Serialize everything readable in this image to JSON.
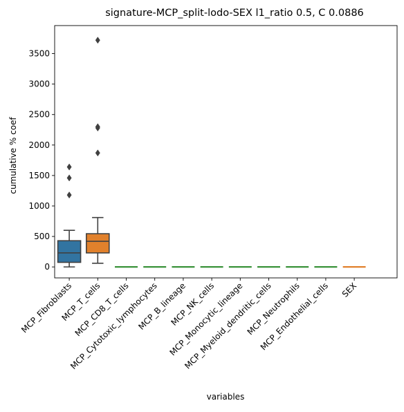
{
  "chart_data": {
    "type": "box",
    "title": "signature-MCP_split-lodo-SEX l1_ratio 0.5, C 0.0886",
    "xlabel": "variables",
    "ylabel": "cumulative % coef",
    "ylim": [
      -180,
      3960
    ],
    "yticks": [
      0,
      500,
      1000,
      1500,
      2000,
      2500,
      3000,
      3500
    ],
    "categories": [
      "MCP_Fibroblasts",
      "MCP_T_cells",
      "MCP_CD8_T_cells",
      "MCP_Cytotoxic_lymphocytes",
      "MCP_B_lineage",
      "MCP_NK_cells",
      "MCP_Monocytic_lineage",
      "MCP_Myeloid_dendritic_cells",
      "MCP_Neutrophils",
      "MCP_Endothelial_cells",
      "SEX"
    ],
    "boxes": [
      {
        "category": "MCP_Fibroblasts",
        "whisker_low": 0,
        "q1": 75,
        "median": 230,
        "q3": 430,
        "whisker_high": 600,
        "outliers": [
          1180,
          1460,
          1640
        ],
        "color": "#3274a1"
      },
      {
        "category": "MCP_T_cells",
        "whisker_low": 60,
        "q1": 230,
        "median": 420,
        "q3": 545,
        "whisker_high": 810,
        "outliers": [
          1870,
          2280,
          2300,
          3720
        ],
        "color": "#e1812c"
      },
      {
        "category": "MCP_CD8_T_cells",
        "whisker_low": 0,
        "q1": 0,
        "median": 0,
        "q3": 0,
        "whisker_high": 0,
        "outliers": [],
        "color": "#3a923a"
      },
      {
        "category": "MCP_Cytotoxic_lymphocytes",
        "whisker_low": 0,
        "q1": 0,
        "median": 0,
        "q3": 0,
        "whisker_high": 0,
        "outliers": [],
        "color": "#3a923a"
      },
      {
        "category": "MCP_B_lineage",
        "whisker_low": 0,
        "q1": 0,
        "median": 0,
        "q3": 0,
        "whisker_high": 0,
        "outliers": [],
        "color": "#3a923a"
      },
      {
        "category": "MCP_NK_cells",
        "whisker_low": 0,
        "q1": 0,
        "median": 0,
        "q3": 0,
        "whisker_high": 0,
        "outliers": [],
        "color": "#3a923a"
      },
      {
        "category": "MCP_Monocytic_lineage",
        "whisker_low": 0,
        "q1": 0,
        "median": 0,
        "q3": 0,
        "whisker_high": 0,
        "outliers": [],
        "color": "#3a923a"
      },
      {
        "category": "MCP_Myeloid_dendritic_cells",
        "whisker_low": 0,
        "q1": 0,
        "median": 0,
        "q3": 0,
        "whisker_high": 0,
        "outliers": [],
        "color": "#3a923a"
      },
      {
        "category": "MCP_Neutrophils",
        "whisker_low": 0,
        "q1": 0,
        "median": 0,
        "q3": 0,
        "whisker_high": 0,
        "outliers": [],
        "color": "#3a923a"
      },
      {
        "category": "MCP_Endothelial_cells",
        "whisker_low": 0,
        "q1": 0,
        "median": 0,
        "q3": 0,
        "whisker_high": 0,
        "outliers": [],
        "color": "#3a923a"
      },
      {
        "category": "SEX",
        "whisker_low": 0,
        "q1": 0,
        "median": 0,
        "q3": 0,
        "whisker_high": 0,
        "outliers": [],
        "color": "#e1812c"
      }
    ],
    "grid": false,
    "legend": "none"
  }
}
